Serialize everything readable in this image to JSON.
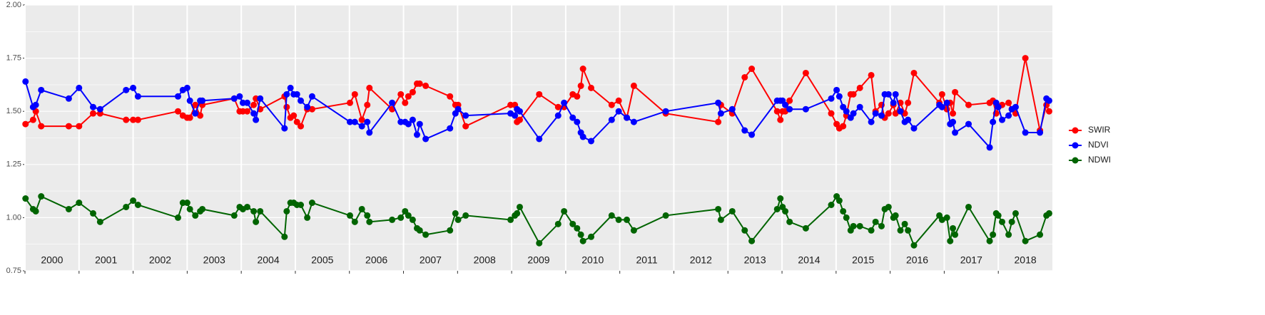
{
  "chart_data": {
    "type": "line",
    "x": [
      2000.01,
      2000.15,
      2000.2,
      2000.3,
      2000.81,
      2001.0,
      2001.26,
      2001.39,
      2001.87,
      2002.0,
      2002.09,
      2002.83,
      2002.92,
      2003.0,
      2003.05,
      2003.15,
      2003.24,
      2003.28,
      2003.87,
      2003.97,
      2004.03,
      2004.11,
      2004.23,
      2004.27,
      2004.35,
      2004.8,
      2004.84,
      2004.91,
      2004.97,
      2005.03,
      2005.1,
      2005.22,
      2005.31,
      2006.01,
      2006.1,
      2006.23,
      2006.33,
      2006.37,
      2006.79,
      2006.95,
      2007.03,
      2007.09,
      2007.17,
      2007.25,
      2007.3,
      2007.41,
      2007.86,
      2007.96,
      2008.01,
      2008.15,
      2008.98,
      2009.06,
      2009.1,
      2009.15,
      2009.51,
      2009.86,
      2009.97,
      2010.13,
      2010.21,
      2010.28,
      2010.32,
      2010.47,
      2010.85,
      2010.98,
      2011.13,
      2011.26,
      2011.85,
      2012.82,
      2012.87,
      2013.08,
      2013.31,
      2013.44,
      2013.91,
      2013.97,
      2014.01,
      2014.06,
      2014.14,
      2014.44,
      2014.91,
      2015.01,
      2015.06,
      2015.13,
      2015.19,
      2015.27,
      2015.32,
      2015.44,
      2015.65,
      2015.73,
      2015.84,
      2015.9,
      2015.97,
      2016.06,
      2016.1,
      2016.19,
      2016.27,
      2016.33,
      2016.44,
      2016.91,
      2016.96,
      2017.05,
      2017.11,
      2017.16,
      2017.2,
      2017.45,
      2017.84,
      2017.9,
      2017.96,
      2018.0,
      2018.07,
      2018.19,
      2018.25,
      2018.32,
      2018.5,
      2018.77,
      2018.89,
      2018.94
    ],
    "series": [
      {
        "name": "SWIR",
        "color": "#ff0000",
        "values": [
          1.44,
          1.46,
          1.5,
          1.43,
          1.43,
          1.43,
          1.49,
          1.49,
          1.46,
          1.46,
          1.46,
          1.5,
          1.48,
          1.47,
          1.47,
          1.53,
          1.48,
          1.53,
          1.56,
          1.5,
          1.5,
          1.5,
          1.53,
          1.56,
          1.51,
          1.57,
          1.52,
          1.47,
          1.48,
          1.45,
          1.43,
          1.51,
          1.51,
          1.54,
          1.58,
          1.46,
          1.53,
          1.61,
          1.51,
          1.58,
          1.54,
          1.57,
          1.59,
          1.63,
          1.63,
          1.62,
          1.57,
          1.53,
          1.53,
          1.43,
          1.53,
          1.53,
          1.45,
          1.46,
          1.58,
          1.52,
          1.52,
          1.58,
          1.57,
          1.62,
          1.7,
          1.61,
          1.53,
          1.55,
          1.47,
          1.62,
          1.49,
          1.45,
          1.53,
          1.49,
          1.66,
          1.7,
          1.5,
          1.46,
          1.5,
          1.5,
          1.55,
          1.68,
          1.49,
          1.44,
          1.42,
          1.43,
          1.48,
          1.58,
          1.58,
          1.61,
          1.67,
          1.5,
          1.53,
          1.47,
          1.49,
          1.53,
          1.49,
          1.54,
          1.49,
          1.54,
          1.68,
          1.54,
          1.58,
          1.51,
          1.54,
          1.49,
          1.59,
          1.53,
          1.54,
          1.55,
          1.49,
          1.52,
          1.53,
          1.54,
          1.51,
          1.49,
          1.75,
          1.41,
          1.53,
          1.5
        ]
      },
      {
        "name": "NDVI",
        "color": "#0000ff",
        "values": [
          1.64,
          1.52,
          1.53,
          1.6,
          1.56,
          1.61,
          1.52,
          1.51,
          1.6,
          1.61,
          1.57,
          1.57,
          1.6,
          1.61,
          1.55,
          1.49,
          1.55,
          1.55,
          1.56,
          1.57,
          1.54,
          1.54,
          1.49,
          1.46,
          1.56,
          1.42,
          1.58,
          1.61,
          1.58,
          1.58,
          1.55,
          1.52,
          1.57,
          1.45,
          1.45,
          1.43,
          1.45,
          1.4,
          1.54,
          1.45,
          1.45,
          1.44,
          1.46,
          1.39,
          1.44,
          1.37,
          1.42,
          1.49,
          1.51,
          1.48,
          1.49,
          1.48,
          1.51,
          1.5,
          1.37,
          1.48,
          1.54,
          1.47,
          1.45,
          1.4,
          1.38,
          1.36,
          1.46,
          1.5,
          1.47,
          1.45,
          1.5,
          1.54,
          1.49,
          1.51,
          1.41,
          1.39,
          1.55,
          1.55,
          1.55,
          1.53,
          1.51,
          1.51,
          1.56,
          1.6,
          1.57,
          1.52,
          1.5,
          1.47,
          1.49,
          1.52,
          1.45,
          1.49,
          1.48,
          1.58,
          1.58,
          1.54,
          1.58,
          1.5,
          1.45,
          1.46,
          1.42,
          1.53,
          1.52,
          1.54,
          1.44,
          1.45,
          1.4,
          1.44,
          1.33,
          1.45,
          1.54,
          1.52,
          1.46,
          1.48,
          1.51,
          1.52,
          1.4,
          1.4,
          1.56,
          1.55
        ]
      },
      {
        "name": "NDWI",
        "color": "#006400",
        "values": [
          1.09,
          1.04,
          1.03,
          1.1,
          1.04,
          1.07,
          1.02,
          0.98,
          1.05,
          1.08,
          1.06,
          1.0,
          1.07,
          1.07,
          1.04,
          1.01,
          1.03,
          1.04,
          1.01,
          1.05,
          1.04,
          1.05,
          1.03,
          0.98,
          1.03,
          0.91,
          1.03,
          1.07,
          1.07,
          1.06,
          1.06,
          1.0,
          1.07,
          1.01,
          0.98,
          1.04,
          1.01,
          0.98,
          0.99,
          1.0,
          1.03,
          1.01,
          0.99,
          0.95,
          0.94,
          0.92,
          0.94,
          1.02,
          0.99,
          1.01,
          0.99,
          1.01,
          1.02,
          1.05,
          0.88,
          0.97,
          1.03,
          0.97,
          0.95,
          0.92,
          0.89,
          0.91,
          1.01,
          0.99,
          0.99,
          0.94,
          1.01,
          1.04,
          0.99,
          1.03,
          0.94,
          0.89,
          1.04,
          1.09,
          1.05,
          1.03,
          0.98,
          0.95,
          1.06,
          1.1,
          1.08,
          1.03,
          1.0,
          0.94,
          0.96,
          0.96,
          0.94,
          0.98,
          0.96,
          1.04,
          1.05,
          1.0,
          1.01,
          0.94,
          0.97,
          0.94,
          0.87,
          1.01,
          0.99,
          1.0,
          0.89,
          0.95,
          0.92,
          1.05,
          0.89,
          0.92,
          1.02,
          1.01,
          0.98,
          0.92,
          0.98,
          1.02,
          0.89,
          0.92,
          1.01,
          1.02
        ]
      }
    ],
    "xlim": [
      2000,
      2019
    ],
    "xticks": [
      2000,
      2001,
      2002,
      2003,
      2004,
      2005,
      2006,
      2007,
      2008,
      2009,
      2010,
      2011,
      2012,
      2013,
      2014,
      2015,
      2016,
      2017,
      2018
    ],
    "ylim": [
      0.75,
      2
    ],
    "yticks": [
      {
        "value": 0.75,
        "label": "0.75"
      },
      {
        "value": 1,
        "label": "1.00"
      },
      {
        "value": 1.25,
        "label": "1.25"
      },
      {
        "value": 1.5,
        "label": "1.50"
      },
      {
        "value": 1.75,
        "label": "1.75"
      },
      {
        "value": 2,
        "label": "2.00"
      }
    ],
    "grid": true,
    "legend": "right"
  }
}
